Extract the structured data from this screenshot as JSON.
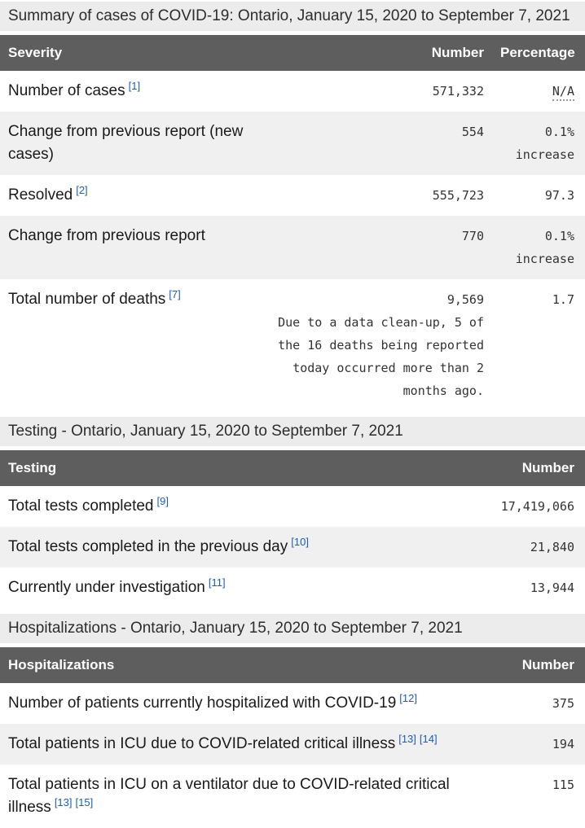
{
  "colors": {
    "caption_bg": "#ececec",
    "header_bg": "#5e5e5e",
    "header_text": "#ffffff",
    "zebra_row_bg": "#f0f0f0",
    "label_text": "#1a1a1a",
    "number_text": "#333333",
    "footnote_link": "#1c5cbb"
  },
  "tables": [
    {
      "caption": "Summary of cases of COVID-19: Ontario, January 15, 2020 to September 7, 2021",
      "columns": [
        "Severity",
        "Number",
        "Percentage"
      ],
      "rows": [
        {
          "label": "Number of cases",
          "refs": [
            "[1]"
          ],
          "number": "571,332",
          "percentage": "N/A",
          "percentage_abbr": true
        },
        {
          "label": "Change from previous report (new cases)",
          "refs": [],
          "number": "554",
          "percentage": "0.1% increase"
        },
        {
          "label": "Resolved",
          "refs": [
            "[2]"
          ],
          "number": "555,723",
          "percentage": "97.3"
        },
        {
          "label": "Change from previous report",
          "refs": [],
          "number": "770",
          "percentage": "0.1% increase"
        },
        {
          "label": "Total number of deaths",
          "refs": [
            "[7]"
          ],
          "number": "9,569",
          "number_note": "Due to a data clean-up, 5 of the 16 deaths being reported today occurred more than 2 months ago.",
          "percentage": "1.7"
        }
      ]
    },
    {
      "caption": "Testing - Ontario, January 15, 2020 to September 7, 2021",
      "columns": [
        "Testing",
        "Number"
      ],
      "rows": [
        {
          "label": "Total tests completed",
          "refs": [
            "[9]"
          ],
          "number": "17,419,066"
        },
        {
          "label": "Total tests completed in the previous day",
          "refs": [
            "[10]"
          ],
          "number": "21,840"
        },
        {
          "label": "Currently under investigation",
          "refs": [
            "[11]"
          ],
          "number": "13,944"
        }
      ]
    },
    {
      "caption": "Hospitalizations - Ontario, January 15, 2020 to September 7, 2021",
      "columns": [
        "Hospitalizations",
        "Number"
      ],
      "rows": [
        {
          "label": "Number of patients currently hospitalized with COVID-19",
          "refs": [
            "[12]"
          ],
          "number": "375"
        },
        {
          "label": "Total patients in ICU due to COVID-related critical illness",
          "refs": [
            "[13]",
            "[14]"
          ],
          "number": "194"
        },
        {
          "label": "Total patients in ICU on a ventilator due to COVID-related critical illness",
          "refs": [
            "[13]",
            "[15]"
          ],
          "number": "115"
        }
      ]
    }
  ]
}
